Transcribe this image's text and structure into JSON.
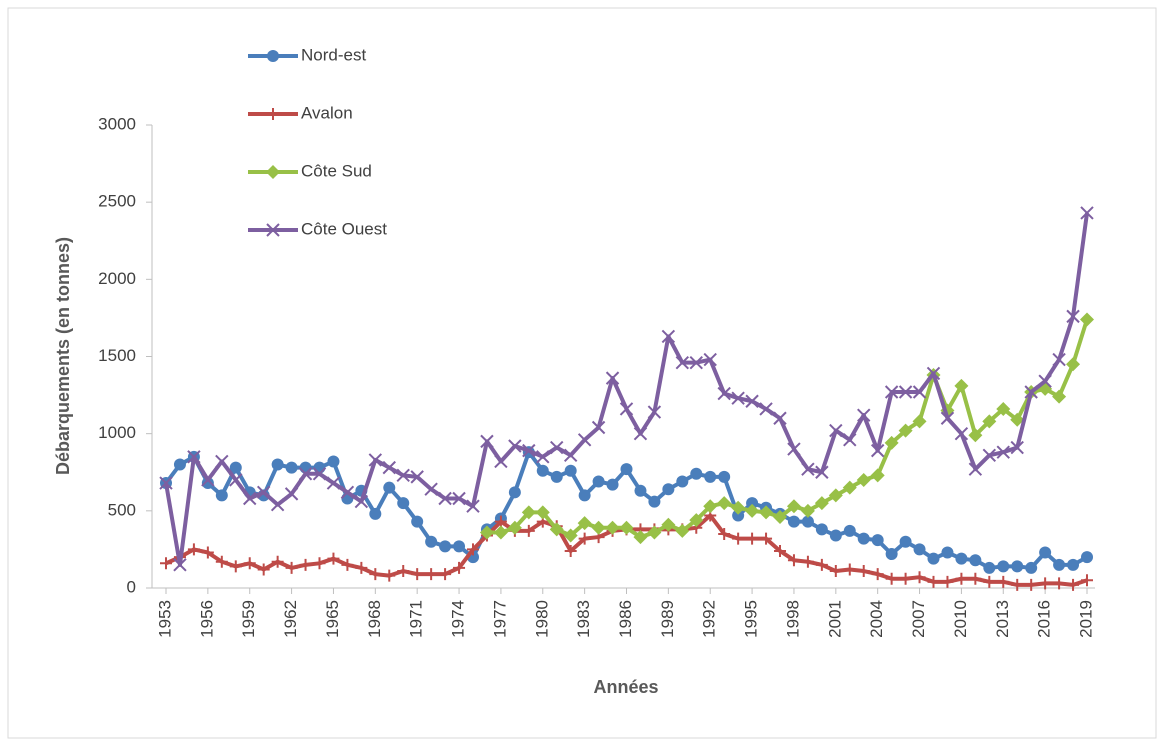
{
  "chart_data": {
    "type": "line",
    "y_label": "Débarquements (en tonnes)",
    "x_label": "Années",
    "x": [
      1953,
      1954,
      1955,
      1956,
      1957,
      1958,
      1959,
      1960,
      1961,
      1962,
      1963,
      1964,
      1965,
      1966,
      1967,
      1968,
      1969,
      1970,
      1971,
      1972,
      1973,
      1974,
      1975,
      1976,
      1977,
      1978,
      1979,
      1980,
      1981,
      1982,
      1983,
      1984,
      1985,
      1986,
      1987,
      1988,
      1989,
      1990,
      1991,
      1992,
      1993,
      1994,
      1995,
      1996,
      1997,
      1998,
      1999,
      2000,
      2001,
      2002,
      2003,
      2004,
      2005,
      2006,
      2007,
      2008,
      2009,
      2010,
      2011,
      2012,
      2013,
      2014,
      2015,
      2016,
      2017,
      2018,
      2019
    ],
    "xlim": [
      1953,
      2019
    ],
    "xticks": [
      1953,
      1956,
      1959,
      1962,
      1965,
      1968,
      1971,
      1974,
      1977,
      1980,
      1983,
      1986,
      1989,
      1992,
      1995,
      1998,
      2001,
      2004,
      2007,
      2010,
      2013,
      2016,
      2019
    ],
    "ylim": [
      0,
      3000
    ],
    "yticks": [
      0,
      500,
      1000,
      1500,
      2000,
      2500,
      3000
    ],
    "legend": "top-left",
    "series": [
      {
        "name": "Nord-est",
        "color": "#4a7ebb",
        "marker": "circle",
        "values": [
          680,
          800,
          850,
          680,
          600,
          780,
          620,
          600,
          800,
          780,
          780,
          780,
          820,
          580,
          630,
          480,
          650,
          550,
          430,
          300,
          270,
          270,
          200,
          380,
          450,
          620,
          880,
          760,
          720,
          760,
          600,
          690,
          670,
          770,
          630,
          560,
          640,
          690,
          740,
          720,
          720,
          470,
          550,
          520,
          480,
          430,
          430,
          380,
          340,
          370,
          320,
          310,
          220,
          300,
          250,
          190,
          230,
          190,
          180,
          130,
          140,
          140,
          130,
          230,
          150,
          150,
          200
        ]
      },
      {
        "name": "Avalon",
        "color": "#be4b48",
        "marker": "plus",
        "values": [
          160,
          200,
          250,
          230,
          170,
          140,
          160,
          120,
          170,
          130,
          150,
          160,
          190,
          150,
          130,
          90,
          80,
          110,
          90,
          90,
          90,
          130,
          250,
          340,
          430,
          370,
          370,
          430,
          400,
          240,
          320,
          330,
          370,
          380,
          380,
          380,
          380,
          380,
          390,
          470,
          350,
          320,
          320,
          320,
          240,
          180,
          170,
          150,
          110,
          120,
          110,
          90,
          60,
          60,
          70,
          40,
          40,
          60,
          60,
          40,
          40,
          20,
          20,
          30,
          30,
          20,
          50
        ]
      },
      {
        "name": "Côte Sud",
        "color": "#98c047",
        "marker": "diamond",
        "values": [
          null,
          null,
          null,
          null,
          null,
          null,
          null,
          null,
          null,
          null,
          null,
          null,
          null,
          null,
          null,
          null,
          null,
          null,
          null,
          null,
          null,
          null,
          null,
          360,
          360,
          390,
          490,
          490,
          380,
          340,
          420,
          390,
          390,
          390,
          330,
          360,
          410,
          370,
          440,
          530,
          550,
          520,
          500,
          490,
          460,
          530,
          500,
          550,
          600,
          650,
          700,
          730,
          940,
          1020,
          1080,
          1380,
          1150,
          1310,
          990,
          1080,
          1160,
          1090,
          1270,
          1290,
          1240,
          1450,
          1740
        ]
      },
      {
        "name": "Côte Ouest",
        "color": "#7d5fa0",
        "marker": "x",
        "values": [
          680,
          150,
          850,
          700,
          820,
          700,
          580,
          620,
          540,
          610,
          740,
          740,
          680,
          620,
          560,
          830,
          780,
          730,
          720,
          640,
          580,
          580,
          530,
          950,
          820,
          920,
          890,
          850,
          910,
          860,
          960,
          1040,
          1360,
          1160,
          1000,
          1140,
          1630,
          1460,
          1460,
          1480,
          1260,
          1230,
          1210,
          1160,
          1100,
          900,
          770,
          750,
          1020,
          960,
          1120,
          890,
          1270,
          1270,
          1270,
          1390,
          1100,
          1000,
          770,
          860,
          880,
          910,
          1270,
          1340,
          1480,
          1760,
          2430
        ]
      }
    ]
  }
}
